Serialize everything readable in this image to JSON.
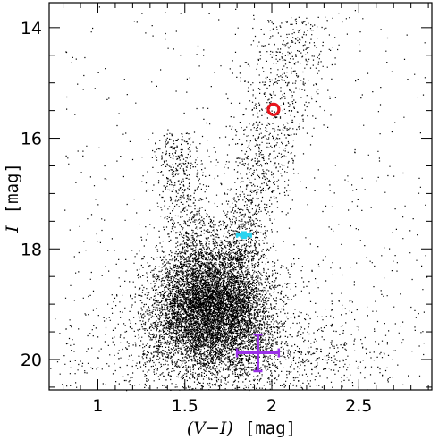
{
  "chart_data": {
    "type": "scatter",
    "title": "",
    "xlabel_var": "(V−I)",
    "xlabel_unit": "[mag]",
    "ylabel_var": "I",
    "ylabel_unit": "[mag]",
    "xlim": [
      0.72,
      2.92
    ],
    "ylim": [
      13.55,
      20.55
    ],
    "y_inverted": true,
    "x_ticks": [
      {
        "value": 1.0,
        "label": "1"
      },
      {
        "value": 1.5,
        "label": "1.5"
      },
      {
        "value": 2.0,
        "label": "2"
      },
      {
        "value": 2.5,
        "label": "2.5"
      }
    ],
    "y_ticks": [
      {
        "value": 14,
        "label": "14"
      },
      {
        "value": 16,
        "label": "16"
      },
      {
        "value": 18,
        "label": "18"
      },
      {
        "value": 20,
        "label": "20"
      }
    ],
    "x_minor_step": 0.1,
    "y_minor_step": 0.5,
    "grid": false,
    "legend": "none",
    "stars": {
      "description_type": "color-magnitude-diagram",
      "approx_count": 11000,
      "point_color": "#000000",
      "populations": [
        {
          "kind": "main-sequence-turnoff",
          "center_color": 1.65,
          "center_mag": 19.05,
          "sd_color": 0.17,
          "sd_mag": 0.55,
          "count": 7600
        },
        {
          "kind": "faint-field",
          "center_color": 1.75,
          "center_mag": 19.9,
          "sd_color": 0.42,
          "sd_mag": 0.45,
          "count": 1500
        },
        {
          "kind": "red-giant-branch",
          "color_at_18": 1.8,
          "color_at_14": 2.15,
          "mag_range": [
            13.8,
            18.2
          ],
          "count": 1300
        },
        {
          "kind": "blue-plume",
          "color_at_18": 1.55,
          "color_at_16": 1.45,
          "mag_range": [
            15.9,
            18.5
          ],
          "count": 650
        },
        {
          "kind": "sparse-field",
          "color_range": [
            0.8,
            2.9
          ],
          "mag_range": [
            13.6,
            20.5
          ],
          "count": 650
        }
      ]
    },
    "markers": [
      {
        "name": "red-circle",
        "x": 2.01,
        "y": 15.48,
        "color": "#e8141c",
        "shape": "ring"
      },
      {
        "name": "cyan-marker",
        "x": 1.84,
        "y": 17.75,
        "xerr": 0.04,
        "yerr": 0.05,
        "color": "#2ad4f0",
        "shape": "filled-errorbar"
      },
      {
        "name": "purple-errorbar",
        "x": 1.92,
        "y": 19.88,
        "xerr": 0.12,
        "yerr": 0.33,
        "color": "#9a30e8",
        "shape": "errorbar"
      }
    ]
  }
}
